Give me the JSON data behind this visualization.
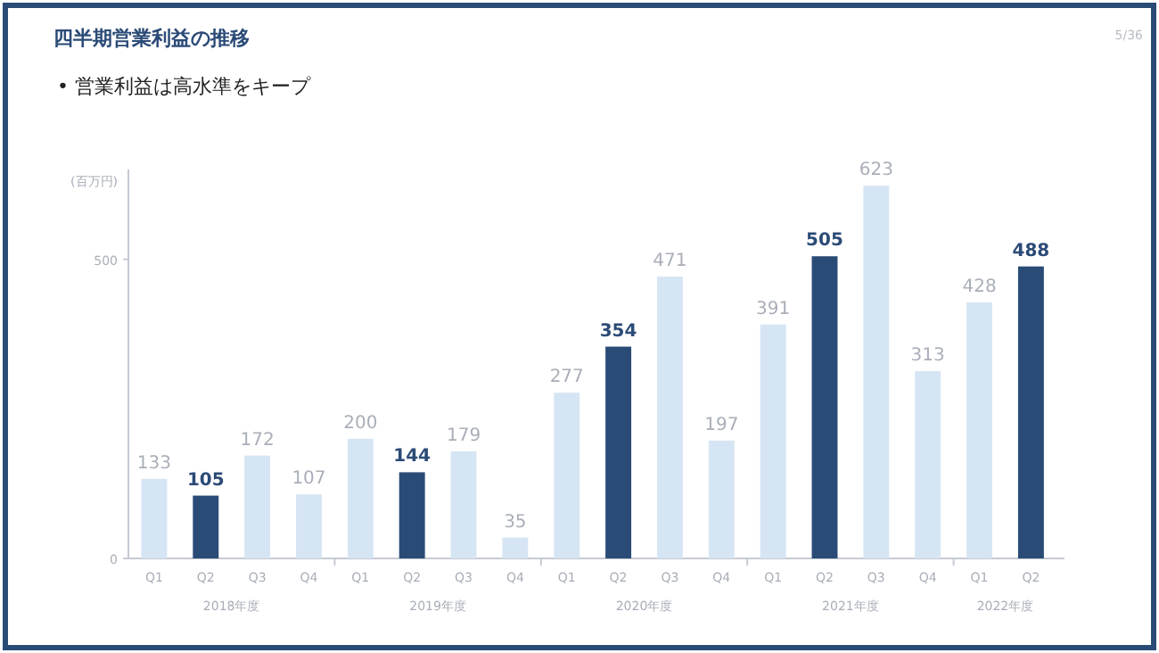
{
  "chart_data": {
    "type": "bar",
    "title": "四半期営業利益の推移",
    "subtitle": "• 営業利益は高水準をキープ",
    "ylabel": "(百万円)",
    "categories": [
      "Q1",
      "Q2",
      "Q3",
      "Q4",
      "Q1",
      "Q2",
      "Q3",
      "Q4",
      "Q1",
      "Q2",
      "Q3",
      "Q4",
      "Q1",
      "Q2",
      "Q3",
      "Q4",
      "Q1",
      "Q2"
    ],
    "values": [
      133,
      105,
      172,
      107,
      200,
      144,
      179,
      35,
      277,
      354,
      471,
      197,
      391,
      505,
      623,
      313,
      428,
      488
    ],
    "colors": [
      "#d6e5f4",
      "#2b4b77",
      "#d6e5f4",
      "#d6e5f4",
      "#d6e5f4",
      "#2b4b77",
      "#d6e5f4",
      "#d6e5f4",
      "#d6e5f4",
      "#2b4b77",
      "#d6e5f4",
      "#d6e5f4",
      "#d6e5f4",
      "#2b4b77",
      "#d6e5f4",
      "#d6e5f4",
      "#d6e5f4",
      "#2b4b77"
    ],
    "ylim": [
      0,
      650
    ],
    "yticks": [
      0,
      500
    ],
    "data_labels": true,
    "annotations": [
      "5/36",
      "2018年度",
      "2019年度",
      "2020年度",
      "2021年度",
      "2022年度"
    ]
  }
}
